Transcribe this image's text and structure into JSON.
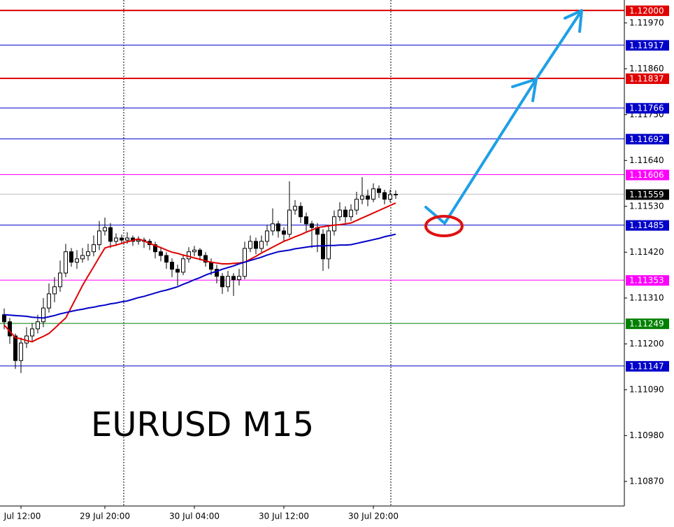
{
  "chart_data": {
    "type": "candlestick",
    "annotation": "EURUSD M15",
    "ylim": [
      1.10811,
      1.12025
    ],
    "yticks": [
      {
        "value": 1.1197,
        "label": "1.11970"
      },
      {
        "value": 1.1186,
        "label": "1.11860"
      },
      {
        "value": 1.1175,
        "label": "1.11750"
      },
      {
        "value": 1.1164,
        "label": "1.11640"
      },
      {
        "value": 1.1153,
        "label": "1.11530"
      },
      {
        "value": 1.1142,
        "label": "1.11420"
      },
      {
        "value": 1.1131,
        "label": "1.11310"
      },
      {
        "value": 1.112,
        "label": "1.11200"
      },
      {
        "value": 1.1109,
        "label": "1.11090"
      },
      {
        "value": 1.1098,
        "label": "1.10980"
      },
      {
        "value": 1.1087,
        "label": "1.10870"
      }
    ],
    "levels": [
      {
        "value": 1.12,
        "label": "1.12000",
        "color": "#e00000"
      },
      {
        "value": 1.11917,
        "label": "1.11917",
        "color": "#0000c8"
      },
      {
        "value": 1.11837,
        "label": "1.11837",
        "color": "#e00000"
      },
      {
        "value": 1.11766,
        "label": "1.11766",
        "color": "#0000c8"
      },
      {
        "value": 1.11692,
        "label": "1.11692",
        "color": "#0000c8"
      },
      {
        "value": 1.11606,
        "label": "1.11606",
        "color": "#ff00ff"
      },
      {
        "value": 1.11559,
        "label": "1.11559",
        "color": "#000000"
      },
      {
        "value": 1.11485,
        "label": "1.11485",
        "color": "#0000c8"
      },
      {
        "value": 1.11353,
        "label": "1.11353",
        "color": "#ff00ff"
      },
      {
        "value": 1.11249,
        "label": "1.11249",
        "color": "#008000"
      },
      {
        "value": 1.11147,
        "label": "1.11147",
        "color": "#0000c8"
      }
    ],
    "categories": [
      null,
      null,
      null,
      "Jul 12:00",
      null,
      null,
      null,
      null,
      null,
      null,
      null,
      null,
      null,
      null,
      null,
      null,
      null,
      null,
      "29 Jul 20:00",
      null,
      null,
      null,
      null,
      null,
      null,
      null,
      null,
      null,
      null,
      null,
      null,
      null,
      null,
      null,
      "30 Jul 04:00",
      null,
      null,
      null,
      null,
      null,
      null,
      null,
      null,
      null,
      null,
      null,
      null,
      null,
      null,
      null,
      "30 Jul 12:00",
      null,
      null,
      null,
      null,
      null,
      null,
      null,
      null,
      null,
      null,
      null,
      null,
      null,
      null,
      null,
      "30 Jul 20:00",
      null,
      null,
      null,
      null
    ],
    "candles": [
      [
        1.1127,
        1.11285,
        1.11235,
        1.11253
      ],
      [
        1.11253,
        1.11262,
        1.112,
        1.11219
      ],
      [
        1.11219,
        1.11225,
        1.1114,
        1.1116
      ],
      [
        1.1116,
        1.11215,
        1.1113,
        1.11202
      ],
      [
        1.11202,
        1.1124,
        1.1119,
        1.11219
      ],
      [
        1.11219,
        1.1125,
        1.11205,
        1.11236
      ],
      [
        1.11236,
        1.1127,
        1.11225,
        1.11253
      ],
      [
        1.11253,
        1.1131,
        1.1124,
        1.11286
      ],
      [
        1.11286,
        1.11345,
        1.11275,
        1.1132
      ],
      [
        1.1132,
        1.1136,
        1.113,
        1.11337
      ],
      [
        1.11337,
        1.114,
        1.11325,
        1.1137
      ],
      [
        1.1137,
        1.1144,
        1.1136,
        1.11421
      ],
      [
        1.11421,
        1.1143,
        1.11385,
        1.11396
      ],
      [
        1.11396,
        1.11425,
        1.1138,
        1.11404
      ],
      [
        1.11404,
        1.1143,
        1.11395,
        1.11412
      ],
      [
        1.11412,
        1.1144,
        1.114,
        1.11421
      ],
      [
        1.11421,
        1.1146,
        1.1141,
        1.11438
      ],
      [
        1.11438,
        1.11495,
        1.11425,
        1.11471
      ],
      [
        1.11471,
        1.11503,
        1.1146,
        1.11479
      ],
      [
        1.11479,
        1.1149,
        1.1143,
        1.11446
      ],
      [
        1.11446,
        1.11465,
        1.11435,
        1.11454
      ],
      [
        1.11454,
        1.11462,
        1.1144,
        1.11449
      ],
      [
        1.11449,
        1.11468,
        1.1144,
        1.11454
      ],
      [
        1.11454,
        1.1146,
        1.11435,
        1.11446
      ],
      [
        1.11446,
        1.11458,
        1.11438,
        1.11449
      ],
      [
        1.11449,
        1.11455,
        1.1143,
        1.11446
      ],
      [
        1.11446,
        1.11452,
        1.11425,
        1.11438
      ],
      [
        1.11438,
        1.11445,
        1.11405,
        1.11421
      ],
      [
        1.11421,
        1.1143,
        1.11398,
        1.11412
      ],
      [
        1.11412,
        1.1142,
        1.1138,
        1.11396
      ],
      [
        1.11396,
        1.11405,
        1.1136,
        1.11379
      ],
      [
        1.11379,
        1.1139,
        1.1134,
        1.11372
      ],
      [
        1.11372,
        1.11415,
        1.11365,
        1.11404
      ],
      [
        1.11404,
        1.11432,
        1.11395,
        1.11421
      ],
      [
        1.11421,
        1.11435,
        1.1141,
        1.11425
      ],
      [
        1.11425,
        1.1143,
        1.114,
        1.11412
      ],
      [
        1.11412,
        1.1142,
        1.11385,
        1.11396
      ],
      [
        1.11396,
        1.11405,
        1.11365,
        1.11379
      ],
      [
        1.11379,
        1.1139,
        1.11345,
        1.11362
      ],
      [
        1.11362,
        1.1137,
        1.1132,
        1.11337
      ],
      [
        1.11337,
        1.11375,
        1.11325,
        1.11362
      ],
      [
        1.11362,
        1.1137,
        1.11315,
        1.11354
      ],
      [
        1.11354,
        1.1138,
        1.1134,
        1.11362
      ],
      [
        1.11362,
        1.11445,
        1.11355,
        1.11429
      ],
      [
        1.11429,
        1.1146,
        1.1142,
        1.11446
      ],
      [
        1.11446,
        1.11455,
        1.11415,
        1.11429
      ],
      [
        1.11429,
        1.1146,
        1.1142,
        1.11446
      ],
      [
        1.11446,
        1.11485,
        1.11435,
        1.11471
      ],
      [
        1.11471,
        1.11525,
        1.1146,
        1.11488
      ],
      [
        1.11488,
        1.11495,
        1.11455,
        1.11471
      ],
      [
        1.11471,
        1.1148,
        1.11445,
        1.11463
      ],
      [
        1.11463,
        1.1159,
        1.11455,
        1.11521
      ],
      [
        1.11521,
        1.11545,
        1.1151,
        1.1153
      ],
      [
        1.1153,
        1.1154,
        1.1149,
        1.11505
      ],
      [
        1.11505,
        1.11515,
        1.1147,
        1.11488
      ],
      [
        1.11488,
        1.11495,
        1.1143,
        1.11479
      ],
      [
        1.11479,
        1.1149,
        1.1142,
        1.11463
      ],
      [
        1.11463,
        1.11475,
        1.11375,
        1.11404
      ],
      [
        1.11404,
        1.11485,
        1.1138,
        1.11471
      ],
      [
        1.11471,
        1.1152,
        1.1146,
        1.11505
      ],
      [
        1.11505,
        1.1154,
        1.11495,
        1.11521
      ],
      [
        1.11521,
        1.1153,
        1.1149,
        1.11505
      ],
      [
        1.11505,
        1.11535,
        1.11495,
        1.11521
      ],
      [
        1.11521,
        1.11565,
        1.1151,
        1.11547
      ],
      [
        1.11547,
        1.116,
        1.11535,
        1.11555
      ],
      [
        1.11555,
        1.1157,
        1.1153,
        1.11547
      ],
      [
        1.11547,
        1.11585,
        1.1154,
        1.11572
      ],
      [
        1.11572,
        1.1158,
        1.1155,
        1.11563
      ],
      [
        1.11563,
        1.1157,
        1.11535,
        1.11547
      ],
      [
        1.11547,
        1.1157,
        1.1154,
        1.11558
      ],
      [
        1.11558,
        1.11568,
        1.11548,
        1.11559
      ]
    ],
    "series": [
      {
        "color": "#e00000",
        "values": [
          1.11245,
          1.1123,
          1.11215,
          1.11212,
          1.11208,
          1.11205,
          1.11212,
          1.11218,
          1.11225,
          1.11237,
          1.1125,
          1.11262,
          1.11288,
          1.11314,
          1.1134,
          1.11363,
          1.11385,
          1.11408,
          1.1143,
          1.11434,
          1.11437,
          1.11441,
          1.11445,
          1.11448,
          1.11452,
          1.11447,
          1.11441,
          1.11436,
          1.11431,
          1.11425,
          1.1142,
          1.11417,
          1.11413,
          1.1141,
          1.11406,
          1.11403,
          1.11399,
          1.11396,
          1.11394,
          1.11392,
          1.11392,
          1.11393,
          1.11394,
          1.11396,
          1.11403,
          1.1141,
          1.11418,
          1.11425,
          1.11432,
          1.11439,
          1.11446,
          1.11451,
          1.11457,
          1.11462,
          1.11468,
          1.11473,
          1.11479,
          1.11481,
          1.11483,
          1.11485,
          1.11486,
          1.11488,
          1.1149,
          1.11496,
          1.11502,
          1.11508,
          1.11514,
          1.1152,
          1.11526,
          1.11532,
          1.11538
        ]
      },
      {
        "color": "#0000c8",
        "values": [
          1.1127,
          1.11269,
          1.11268,
          1.11267,
          1.11266,
          1.11264,
          1.11263,
          1.11262,
          1.11265,
          1.11268,
          1.11272,
          1.11275,
          1.11278,
          1.11281,
          1.11283,
          1.11286,
          1.11288,
          1.11291,
          1.11293,
          1.11296,
          1.11298,
          1.11301,
          1.11303,
          1.11307,
          1.11311,
          1.11314,
          1.11318,
          1.11322,
          1.11326,
          1.11329,
          1.11333,
          1.11337,
          1.11343,
          1.11348,
          1.11354,
          1.11359,
          1.11365,
          1.1137,
          1.11374,
          1.11379,
          1.11383,
          1.11387,
          1.11392,
          1.11396,
          1.114,
          1.11404,
          1.11408,
          1.11413,
          1.11417,
          1.11421,
          1.11423,
          1.11425,
          1.11428,
          1.1143,
          1.11432,
          1.11434,
          1.11435,
          1.11435,
          1.11436,
          1.11436,
          1.11437,
          1.11437,
          1.11438,
          1.11441,
          1.11444,
          1.11447,
          1.1145,
          1.11453,
          1.11457,
          1.1146,
          1.11463
        ]
      }
    ]
  }
}
